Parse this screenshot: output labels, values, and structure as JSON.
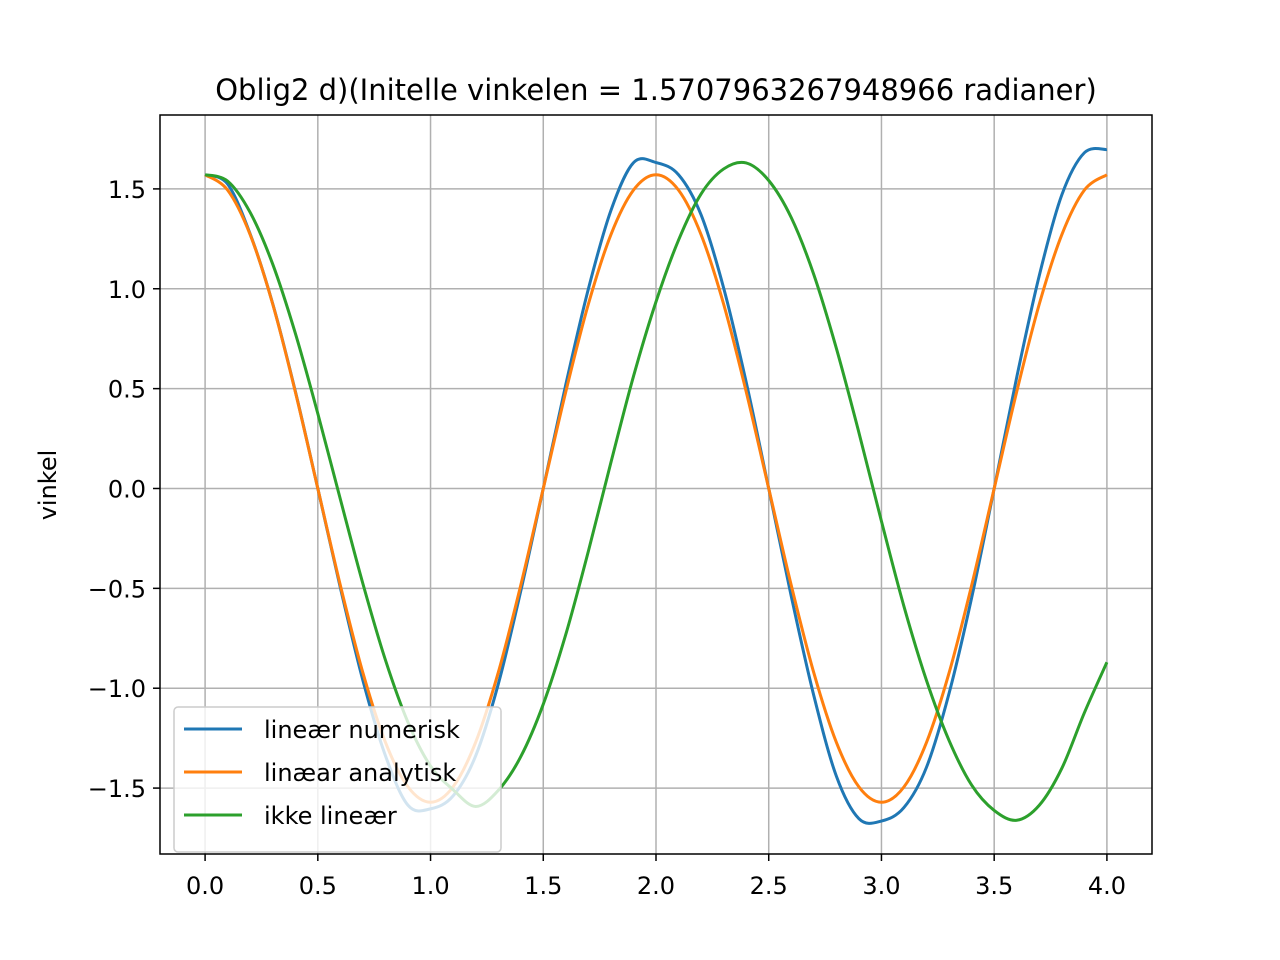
{
  "chart_data": {
    "type": "line",
    "title": "Oblig2 d)(Initelle vinkelen = 1.5707963267948966 radianer)",
    "xlabel": "",
    "ylabel": "vinkel",
    "xlim": [
      -0.2,
      4.2
    ],
    "ylim": [
      -1.83,
      1.87
    ],
    "xticks": [
      0.0,
      0.5,
      1.0,
      1.5,
      2.0,
      2.5,
      3.0,
      3.5,
      4.0
    ],
    "xtick_labels": [
      "0.0",
      "0.5",
      "1.0",
      "1.5",
      "2.0",
      "2.5",
      "3.0",
      "3.5",
      "4.0"
    ],
    "yticks": [
      -1.5,
      -1.0,
      -0.5,
      0.0,
      0.5,
      1.0,
      1.5
    ],
    "ytick_labels": [
      "−1.5",
      "−1.0",
      "−0.5",
      "0.0",
      "0.5",
      "1.0",
      "1.5"
    ],
    "grid": true,
    "legend_position": "lower-left",
    "series": [
      {
        "name": "lineær numerisk",
        "color": "#1f77b4",
        "x": [
          0.0,
          0.1,
          0.2,
          0.3,
          0.4,
          0.5,
          0.6,
          0.7,
          0.8,
          0.9,
          1.0,
          1.1,
          1.2,
          1.3,
          1.4,
          1.5,
          1.6,
          1.7,
          1.8,
          1.9,
          2.0,
          2.1,
          2.2,
          2.3,
          2.4,
          2.5,
          2.6,
          2.7,
          2.8,
          2.9,
          3.0,
          3.1,
          3.2,
          3.3,
          3.4,
          3.5,
          3.6,
          3.7,
          3.8,
          3.9,
          4.0
        ],
        "y": [
          1.571,
          1.524,
          1.274,
          0.925,
          0.488,
          0.0,
          -0.497,
          -0.961,
          -1.338,
          -1.586,
          -1.604,
          -1.539,
          -1.339,
          -0.981,
          -0.514,
          0.0,
          0.521,
          0.999,
          1.392,
          1.631,
          1.632,
          1.571,
          1.37,
          1.004,
          0.533,
          0.0,
          -0.54,
          -1.037,
          -1.44,
          -1.653,
          -1.665,
          -1.597,
          -1.395,
          -1.025,
          -0.547,
          0.0,
          0.557,
          1.066,
          1.47,
          1.681,
          1.697
        ]
      },
      {
        "name": "linæar analytisk",
        "color": "#ff7f0e",
        "x": [
          0.0,
          0.1,
          0.2,
          0.3,
          0.4,
          0.5,
          0.6,
          0.7,
          0.8,
          0.9,
          1.0,
          1.1,
          1.2,
          1.3,
          1.4,
          1.5,
          1.6,
          1.7,
          1.8,
          1.9,
          2.0,
          2.1,
          2.2,
          2.3,
          2.4,
          2.5,
          2.6,
          2.7,
          2.8,
          2.9,
          3.0,
          3.1,
          3.2,
          3.3,
          3.4,
          3.5,
          3.6,
          3.7,
          3.8,
          3.9,
          4.0
        ],
        "y": [
          1.571,
          1.494,
          1.271,
          0.923,
          0.485,
          0.0,
          -0.485,
          -0.923,
          -1.271,
          -1.494,
          -1.571,
          -1.494,
          -1.271,
          -0.923,
          -0.485,
          0.0,
          0.485,
          0.923,
          1.271,
          1.494,
          1.571,
          1.494,
          1.271,
          0.923,
          0.485,
          0.0,
          -0.485,
          -0.923,
          -1.271,
          -1.494,
          -1.571,
          -1.494,
          -1.271,
          -0.923,
          -0.485,
          0.0,
          0.485,
          0.923,
          1.271,
          1.494,
          1.571
        ]
      },
      {
        "name": "ikke lineær",
        "color": "#2ca02c",
        "x": [
          0.0,
          0.1,
          0.2,
          0.3,
          0.4,
          0.5,
          0.6,
          0.7,
          0.8,
          0.9,
          1.0,
          1.1,
          1.2,
          1.3,
          1.4,
          1.5,
          1.6,
          1.7,
          1.8,
          1.9,
          2.0,
          2.1,
          2.2,
          2.3,
          2.4,
          2.5,
          2.6,
          2.7,
          2.8,
          2.9,
          3.0,
          3.1,
          3.2,
          3.3,
          3.4,
          3.5,
          3.6,
          3.7,
          3.8,
          3.9,
          4.0
        ],
        "y": [
          1.571,
          1.539,
          1.382,
          1.123,
          0.778,
          0.375,
          -0.054,
          -0.477,
          -0.859,
          -1.171,
          -1.39,
          -1.508,
          -1.592,
          -1.512,
          -1.343,
          -1.08,
          -0.73,
          -0.314,
          0.13,
          0.561,
          0.935,
          1.244,
          1.475,
          1.6,
          1.63,
          1.542,
          1.356,
          1.071,
          0.702,
          0.28,
          -0.164,
          -0.591,
          -0.962,
          -1.262,
          -1.485,
          -1.612,
          -1.661,
          -1.586,
          -1.401,
          -1.123,
          -0.87
        ]
      }
    ]
  }
}
